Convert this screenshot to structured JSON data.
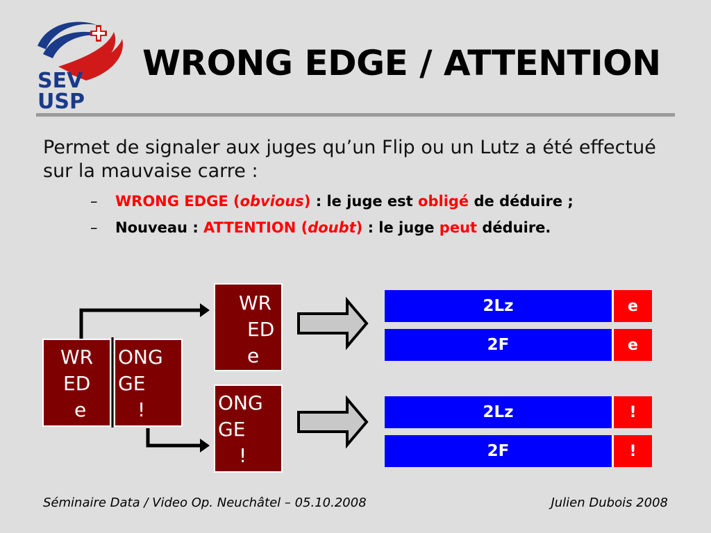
{
  "logo": {
    "line1": "SEV",
    "line2": "USP"
  },
  "title": "WRONG EDGE / ATTENTION",
  "intro": "Permet de signaler aux juges qu’un Flip ou un Lutz a été effectué sur la mauvaise carre :",
  "bullets": [
    {
      "dash": "–",
      "a": "WRONG EDGE (",
      "a_italic": "obvious",
      "b": ")",
      "c": " : le juge est ",
      "d": "obligé",
      "e": " de déduire ;"
    },
    {
      "dash": "–",
      "a": "Nouveau : ",
      "b": "ATTENTION (",
      "b_italic": "doubt",
      "c": ")",
      "d": " : le juge ",
      "e": "peut",
      "f": " déduire."
    }
  ],
  "left_marks": {
    "left": [
      "WR",
      "ED",
      "e"
    ],
    "right": [
      "ONG",
      "GE",
      "!"
    ]
  },
  "wrong_edge_mark": [
    "WR",
    "ED",
    "e"
  ],
  "attention_mark": [
    "ONG",
    "GE",
    "!"
  ],
  "rows_wrong_edge": [
    {
      "element": "2Lz",
      "flag": "e"
    },
    {
      "element": "2F",
      "flag": "e"
    }
  ],
  "rows_attention": [
    {
      "element": "2Lz",
      "flag": "!"
    },
    {
      "element": "2F",
      "flag": "!"
    }
  ],
  "footer_left": "Séminaire Data / Video Op. Neuchâtel – 05.10.2008",
  "footer_right": "Julien Dubois 2008",
  "colors": {
    "mark_bg": "#7f0000",
    "bar_blue": "#0000ff",
    "flag_red": "#ff0000",
    "highlight_red": "#ff0000"
  }
}
